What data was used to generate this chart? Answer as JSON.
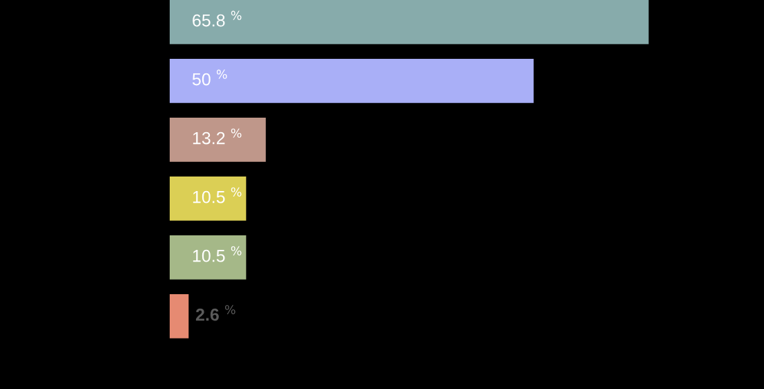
{
  "chart_data": {
    "type": "bar",
    "orientation": "horizontal",
    "categories": [
      null,
      null,
      null,
      null,
      null,
      null
    ],
    "values": [
      65.8,
      50,
      13.2,
      10.5,
      10.5,
      2.6
    ],
    "colors": [
      "#87abab",
      "#a9aff7",
      "#bf978a",
      "#dbcf55",
      "#a5b888",
      "#e68a72"
    ],
    "value_labels": [
      "65.8 $^{%}$",
      "50 $^{%}$",
      "13.2 $^{%}$",
      "10.5 $^{%}$",
      "10.5 $^{%}$",
      "2.6 $^{%}$"
    ],
    "grid": false,
    "legend": false
  }
}
